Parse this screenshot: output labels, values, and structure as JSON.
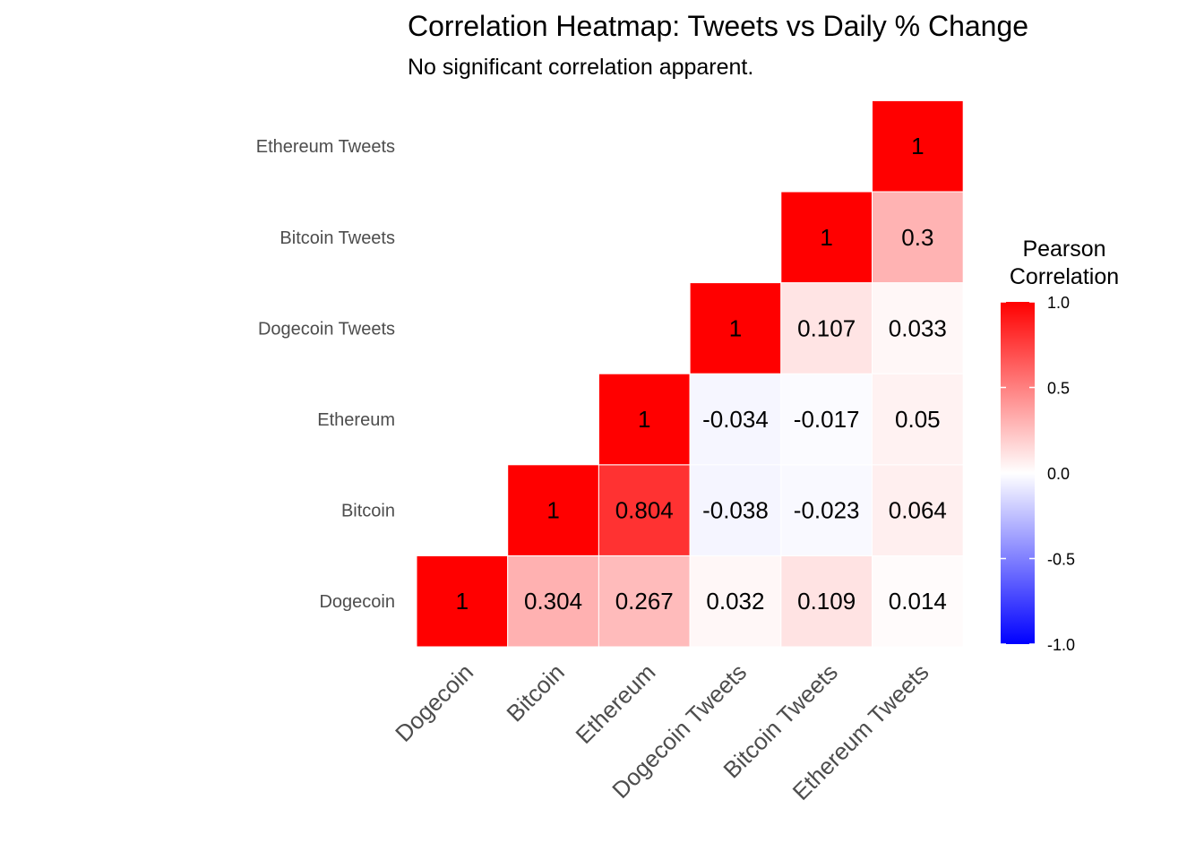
{
  "chart_data": {
    "type": "heatmap",
    "title": "Correlation Heatmap: Tweets vs Daily % Change",
    "subtitle": "No significant correlation apparent.",
    "x_categories": [
      "Dogecoin",
      "Bitcoin",
      "Ethereum",
      "Dogecoin Tweets",
      "Bitcoin Tweets",
      "Ethereum Tweets"
    ],
    "y_categories": [
      "Dogecoin",
      "Bitcoin",
      "Ethereum",
      "Dogecoin Tweets",
      "Bitcoin Tweets",
      "Ethereum Tweets"
    ],
    "cells": [
      {
        "x": "Dogecoin",
        "y": "Dogecoin",
        "value": 1,
        "label": "1"
      },
      {
        "x": "Bitcoin",
        "y": "Dogecoin",
        "value": 0.304,
        "label": "0.304"
      },
      {
        "x": "Ethereum",
        "y": "Dogecoin",
        "value": 0.267,
        "label": "0.267"
      },
      {
        "x": "Dogecoin Tweets",
        "y": "Dogecoin",
        "value": 0.032,
        "label": "0.032"
      },
      {
        "x": "Bitcoin Tweets",
        "y": "Dogecoin",
        "value": 0.109,
        "label": "0.109"
      },
      {
        "x": "Ethereum Tweets",
        "y": "Dogecoin",
        "value": 0.014,
        "label": "0.014"
      },
      {
        "x": "Bitcoin",
        "y": "Bitcoin",
        "value": 1,
        "label": "1"
      },
      {
        "x": "Ethereum",
        "y": "Bitcoin",
        "value": 0.804,
        "label": "0.804"
      },
      {
        "x": "Dogecoin Tweets",
        "y": "Bitcoin",
        "value": -0.038,
        "label": "-0.038"
      },
      {
        "x": "Bitcoin Tweets",
        "y": "Bitcoin",
        "value": -0.023,
        "label": "-0.023"
      },
      {
        "x": "Ethereum Tweets",
        "y": "Bitcoin",
        "value": 0.064,
        "label": "0.064"
      },
      {
        "x": "Ethereum",
        "y": "Ethereum",
        "value": 1,
        "label": "1"
      },
      {
        "x": "Dogecoin Tweets",
        "y": "Ethereum",
        "value": -0.034,
        "label": "-0.034"
      },
      {
        "x": "Bitcoin Tweets",
        "y": "Ethereum",
        "value": -0.017,
        "label": "-0.017"
      },
      {
        "x": "Ethereum Tweets",
        "y": "Ethereum",
        "value": 0.05,
        "label": "0.05"
      },
      {
        "x": "Dogecoin Tweets",
        "y": "Dogecoin Tweets",
        "value": 1,
        "label": "1"
      },
      {
        "x": "Bitcoin Tweets",
        "y": "Dogecoin Tweets",
        "value": 0.107,
        "label": "0.107"
      },
      {
        "x": "Ethereum Tweets",
        "y": "Dogecoin Tweets",
        "value": 0.033,
        "label": "0.033"
      },
      {
        "x": "Bitcoin Tweets",
        "y": "Bitcoin Tweets",
        "value": 1,
        "label": "1"
      },
      {
        "x": "Ethereum Tweets",
        "y": "Bitcoin Tweets",
        "value": 0.3,
        "label": "0.3"
      },
      {
        "x": "Ethereum Tweets",
        "y": "Ethereum Tweets",
        "value": 1,
        "label": "1"
      }
    ],
    "legend": {
      "title_lines": [
        "Pearson",
        "Correlation"
      ],
      "ticks": [
        "1.0",
        "0.5",
        "0.0",
        "-0.5",
        "-1.0"
      ],
      "tick_values": [
        1,
        0.5,
        0,
        -0.5,
        -1
      ],
      "range": [
        -1,
        1
      ],
      "placement": "right"
    },
    "colors": {
      "low": "#0000ff",
      "mid": "#ffffff",
      "high": "#ff0000"
    },
    "grid": false
  }
}
